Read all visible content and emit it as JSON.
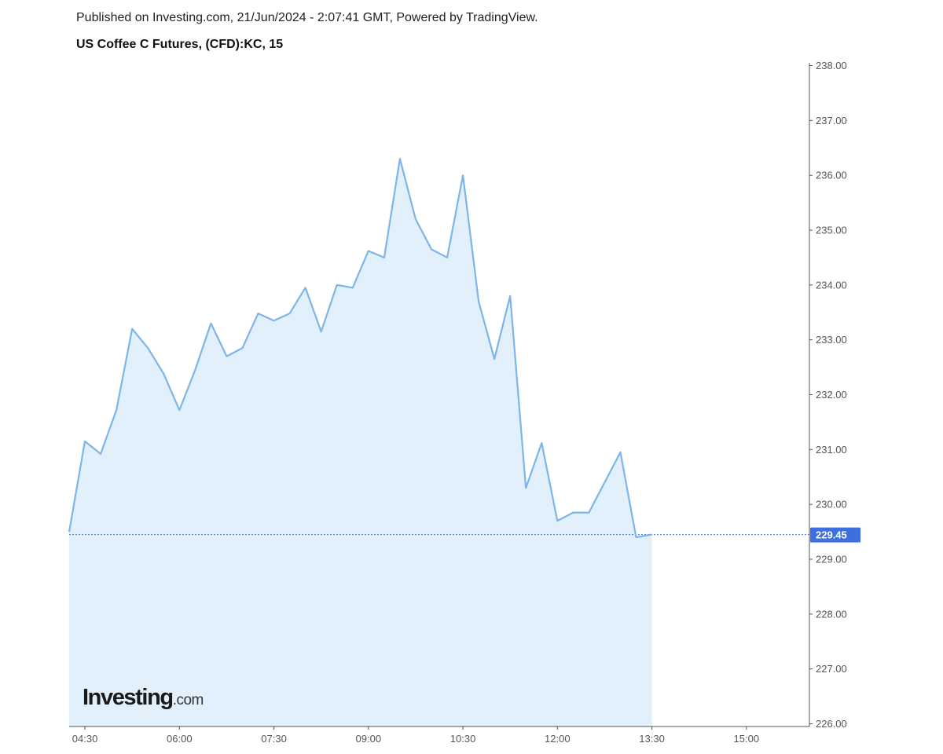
{
  "header": {
    "published": "Published on Investing.com, 21/Jun/2024 - 2:07:41 GMT, Powered by TradingView.",
    "title": "US Coffee C Futures, (CFD):KC, 15"
  },
  "logo": {
    "main": "Investing",
    "suffix": ".com"
  },
  "colors": {
    "line": "#7db5ea",
    "area": "#e1f0fa",
    "axis": "#555555",
    "tick_text": "#555555",
    "last_price_badge": "#3d6fe0",
    "last_price_text": "#ffffff",
    "last_price_line": "#3d6fe0"
  },
  "chart_data": {
    "type": "area",
    "title": "US Coffee C Futures, (CFD):KC, 15",
    "xlabel": "",
    "ylabel": "",
    "x_ticks": [
      "04:30",
      "06:00",
      "07:30",
      "09:00",
      "10:30",
      "12:00",
      "13:30",
      "15:00"
    ],
    "y_ticks": [
      "238.00",
      "237.00",
      "236.00",
      "235.00",
      "234.00",
      "233.00",
      "232.00",
      "231.00",
      "230.00",
      "229.00",
      "228.00",
      "227.00",
      "226.00"
    ],
    "ylim": [
      225.95,
      238.05
    ],
    "xlim": [
      "04:15",
      "16:00"
    ],
    "x": [
      "04:15",
      "04:30",
      "04:45",
      "05:00",
      "05:15",
      "05:30",
      "05:45",
      "06:00",
      "06:15",
      "06:30",
      "06:45",
      "07:00",
      "07:15",
      "07:30",
      "07:45",
      "08:00",
      "08:15",
      "08:30",
      "08:45",
      "09:00",
      "09:15",
      "09:30",
      "09:45",
      "10:00",
      "10:15",
      "10:30",
      "10:45",
      "11:00",
      "11:15",
      "11:30",
      "11:45",
      "12:00",
      "12:15",
      "12:30",
      "12:45",
      "13:00",
      "13:15",
      "13:30"
    ],
    "values": [
      229.5,
      231.15,
      230.92,
      231.72,
      233.2,
      232.85,
      232.38,
      231.72,
      232.45,
      233.3,
      232.7,
      232.85,
      233.48,
      233.35,
      233.48,
      233.95,
      233.15,
      234.0,
      233.95,
      234.62,
      234.5,
      236.3,
      235.2,
      234.65,
      234.5,
      236.0,
      233.7,
      232.65,
      233.8,
      230.3,
      231.12,
      229.7,
      229.85,
      229.85,
      230.4,
      230.95,
      229.4,
      229.45
    ],
    "last_price": 229.45,
    "last_price_label": "229.45",
    "grid": false,
    "legend": "none"
  }
}
